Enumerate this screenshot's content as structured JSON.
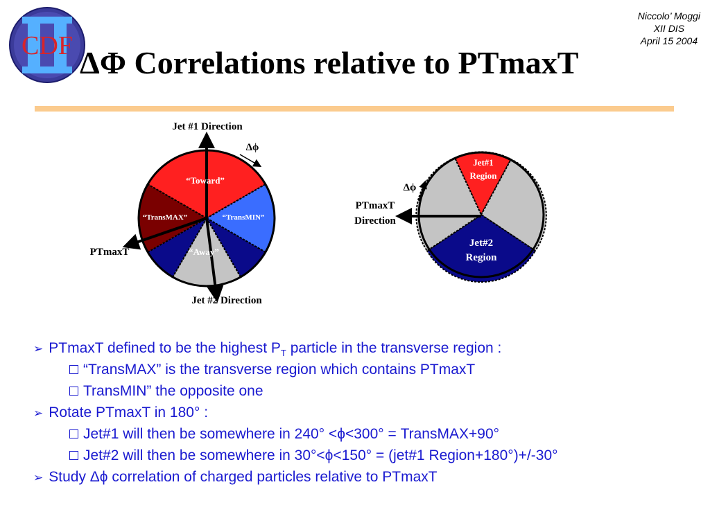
{
  "logo": {
    "text": "CDF"
  },
  "title": "ΔΦ Correlations relative to PTmaxT",
  "author": {
    "name": "Niccolo’ Moggi",
    "conference": "XII DIS",
    "date": "April 15 2004"
  },
  "diagram_left": {
    "top_label": "Jet #1 Direction",
    "bottom_label": "Jet #2 Direction",
    "left_label": "PTmaxT",
    "dphi_label": "Δϕ",
    "regions": {
      "toward": "“Toward”",
      "transmax": "“TransMAX”",
      "transmin": "“TransMIN”",
      "away": "“Away”"
    }
  },
  "diagram_right": {
    "ptmaxt_label": [
      "PTmaxT",
      "Direction"
    ],
    "dphi_label": "Δϕ",
    "jet1_region": [
      "Jet#1",
      "Region"
    ],
    "jet2_region": [
      "Jet#2",
      "Region"
    ]
  },
  "bullets": {
    "b1_pre": "PTmaxT defined to be the highest P",
    "b1_sub": "T",
    "b1_post": " particle in the transverse region :",
    "b1_1": "“TransMAX” is the transverse region which contains PTmaxT",
    "b1_2": "TransMIN” the opposite one",
    "b2": "Rotate PTmaxT in 180° :",
    "b2_1": "Jet#1 will then be somewhere in 240° <ϕ<300° = TransMAX+90°",
    "b2_2": "Jet#2 will then be somewhere in 30°<ϕ<150° = (jet#1 Region+180°)+/-30°",
    "b3": "Study Δϕ correlation of charged particles relative to PTmaxT"
  },
  "colors": {
    "accent_rule": "#fbcb8e",
    "bullet_text": "#1a1ad0",
    "toward": "#ff2020",
    "transmax": "#7a0000",
    "transmin": "#3a6dff",
    "away": "#0a0a8a",
    "gray": "#c4c4c4"
  }
}
